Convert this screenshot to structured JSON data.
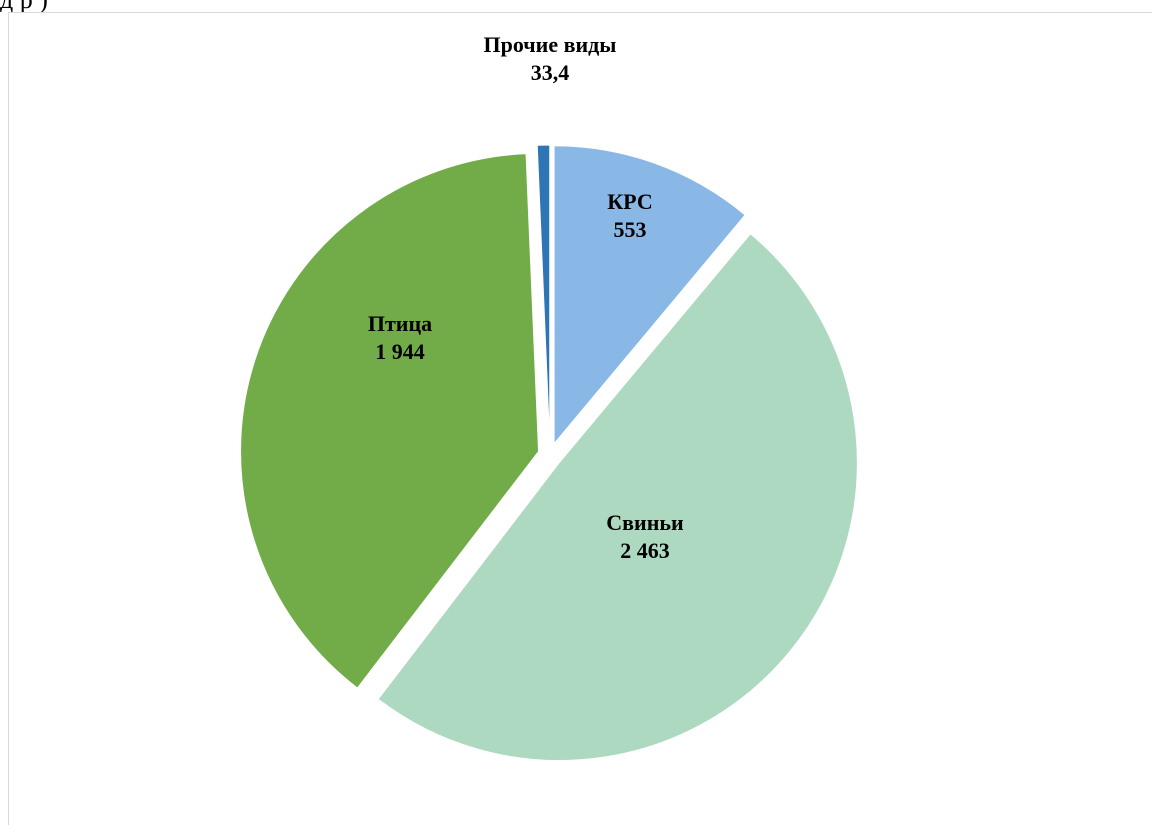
{
  "page": {
    "top_fragment": "д р       )"
  },
  "chart_data": {
    "type": "pie",
    "title": "",
    "categories": [
      "КРС",
      "Свиньи",
      "Птица",
      "Прочие виды"
    ],
    "values": [
      553,
      2463,
      1944,
      33.4
    ],
    "value_labels": [
      "553",
      "2 463",
      "1 944",
      "33,4"
    ],
    "colors": [
      "#8ab8e6",
      "#acd9bf",
      "#72ac48",
      "#2e75b6"
    ],
    "exploded": true,
    "legend": "none",
    "data_labels": "category-and-value"
  }
}
